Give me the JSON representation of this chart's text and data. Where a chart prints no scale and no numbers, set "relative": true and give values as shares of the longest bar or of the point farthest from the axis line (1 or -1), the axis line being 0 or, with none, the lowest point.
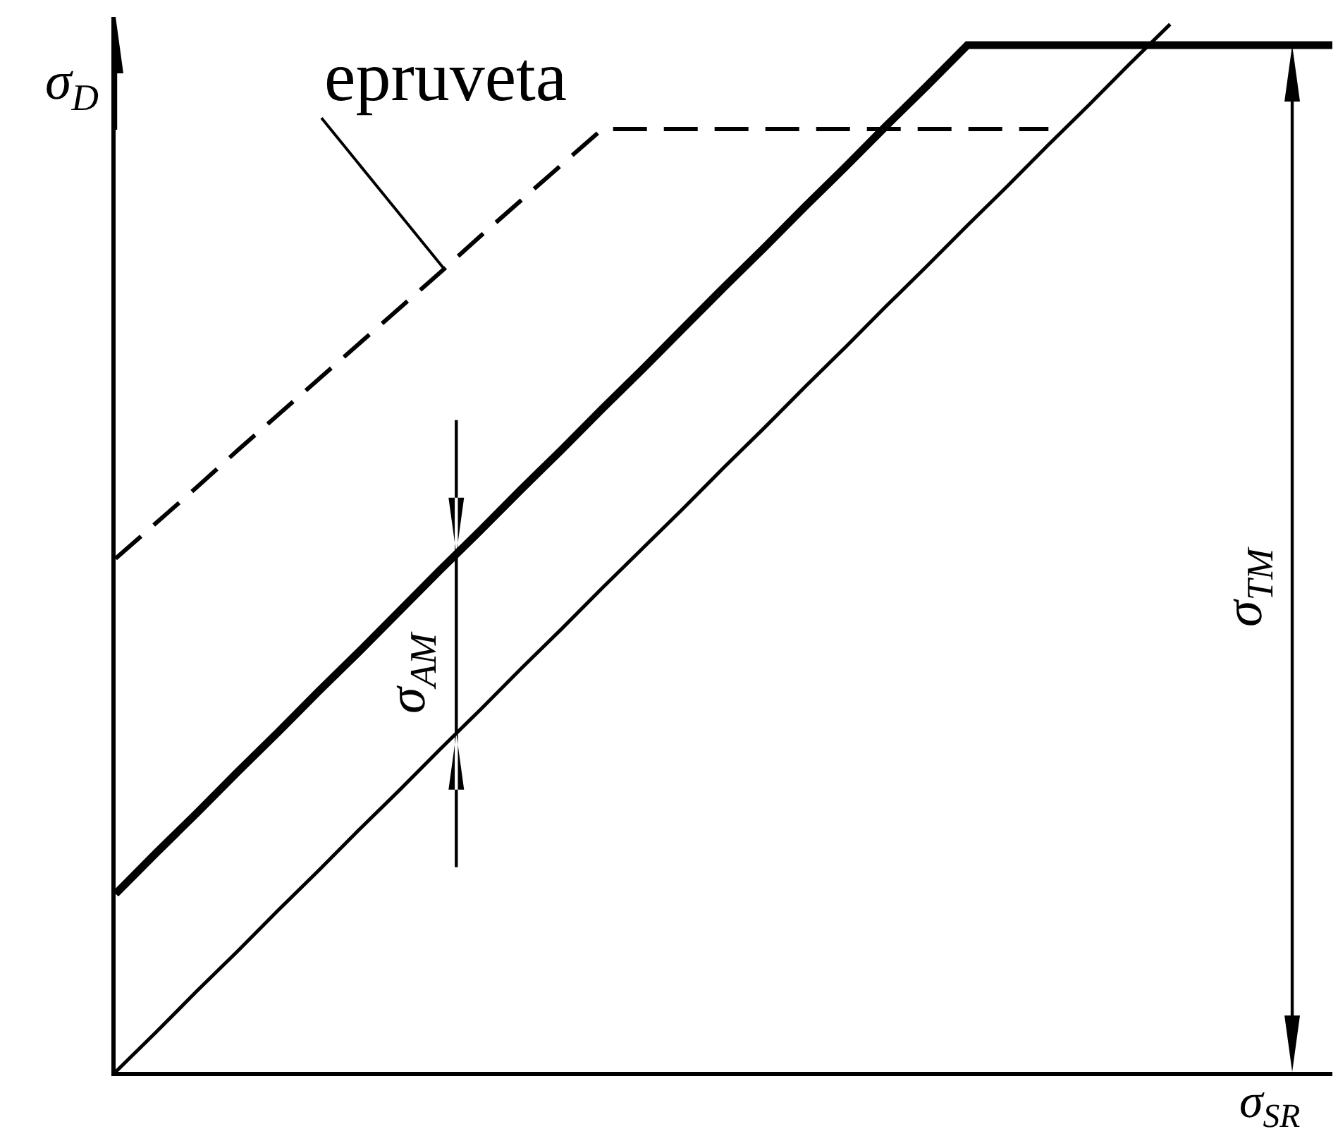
{
  "chart_data": {
    "type": "line",
    "relative": true,
    "xlabel": "σ$_{SR}$",
    "ylabel": "σ$_{D}$",
    "categories": [
      null,
      null,
      null,
      null,
      null,
      null,
      null,
      null,
      null,
      null,
      null,
      null,
      null,
      null,
      null,
      null,
      null,
      null,
      null,
      null,
      null,
      null,
      null,
      null,
      null,
      null,
      null,
      null,
      null,
      null,
      null
    ],
    "series": [
      {
        "name": "epruveta",
        "color": "#000000",
        "line_style": "dashed",
        "values": [
          0.49,
          0.524,
          0.558,
          0.593,
          0.627,
          0.661,
          0.695,
          0.729,
          0.763,
          0.798,
          0.832,
          0.866,
          0.9,
          0.9,
          0.9,
          0.9,
          0.9,
          0.9,
          0.9,
          0.9,
          0.9,
          0.9,
          0.9,
          0.9,
          null,
          null,
          null,
          null,
          null,
          null,
          null
        ]
      },
      {
        "color": "#000000",
        "values": [
          0.17,
          0.209,
          0.247,
          0.286,
          0.324,
          0.363,
          0.401,
          0.44,
          0.479,
          0.517,
          0.556,
          0.594,
          0.633,
          0.671,
          0.71,
          0.749,
          0.787,
          0.826,
          0.864,
          0.903,
          0.941,
          0.98,
          0.98,
          0.98,
          0.98,
          0.98,
          0.98,
          0.98,
          0.98,
          0.98,
          0.98
        ]
      },
      {
        "color": "#000000",
        "values": [
          0,
          0.038,
          0.077,
          0.115,
          0.154,
          0.192,
          0.231,
          0.269,
          0.308,
          0.346,
          0.385,
          0.423,
          0.462,
          0.5,
          0.538,
          0.577,
          0.615,
          0.654,
          0.692,
          0.731,
          0.769,
          0.808,
          0.846,
          0.885,
          0.923,
          0.962,
          1,
          null,
          null,
          null,
          null
        ]
      }
    ],
    "annotations": [
      "σ$_{AM}$",
      "σ$_{TM}$"
    ],
    "marker": "none",
    "legend": false
  }
}
